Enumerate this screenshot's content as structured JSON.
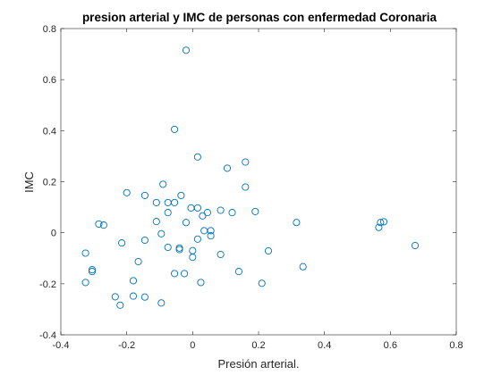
{
  "chart_data": {
    "type": "scatter",
    "title": "presion arterial y IMC de personas con enfermedad Coronaria",
    "xlabel": "Presión arterial.",
    "ylabel": "IMC",
    "xlim": [
      -0.4,
      0.8
    ],
    "ylim": [
      -0.4,
      0.8
    ],
    "xticks": [
      "-0.4",
      "-0.2",
      "0",
      "0.2",
      "0.4",
      "0.6",
      "0.8"
    ],
    "yticks": [
      "-0.4",
      "-0.2",
      "0",
      "0.2",
      "0.4",
      "0.6",
      "0.8"
    ],
    "grid": false,
    "marker": "circle-open",
    "color": "#0072BD",
    "points": [
      [
        -0.02,
        0.715
      ],
      [
        -0.055,
        0.405
      ],
      [
        0.015,
        0.297
      ],
      [
        0.16,
        0.277
      ],
      [
        0.105,
        0.253
      ],
      [
        0.16,
        0.179
      ],
      [
        -0.2,
        0.157
      ],
      [
        -0.09,
        0.19
      ],
      [
        -0.035,
        0.146
      ],
      [
        -0.145,
        0.146
      ],
      [
        -0.11,
        0.118
      ],
      [
        -0.075,
        0.118
      ],
      [
        -0.055,
        0.118
      ],
      [
        -0.005,
        0.097
      ],
      [
        0.015,
        0.097
      ],
      [
        0.085,
        0.088
      ],
      [
        0.045,
        0.079
      ],
      [
        0.12,
        0.079
      ],
      [
        0.19,
        0.083
      ],
      [
        -0.075,
        0.079
      ],
      [
        0.03,
        0.066
      ],
      [
        -0.11,
        0.044
      ],
      [
        -0.02,
        0.04
      ],
      [
        0.315,
        0.04
      ],
      [
        0.57,
        0.04
      ],
      [
        0.58,
        0.043
      ],
      [
        0.565,
        0.021
      ],
      [
        -0.285,
        0.034
      ],
      [
        -0.27,
        0.03
      ],
      [
        0.035,
        0.008
      ],
      [
        0.055,
        0.008
      ],
      [
        -0.095,
        -0.004
      ],
      [
        0.055,
        -0.012
      ],
      [
        -0.215,
        -0.04
      ],
      [
        -0.145,
        -0.029
      ],
      [
        0.015,
        -0.025
      ],
      [
        0.675,
        -0.05
      ],
      [
        -0.075,
        -0.057
      ],
      [
        -0.04,
        -0.06
      ],
      [
        -0.04,
        -0.066
      ],
      [
        0.0,
        -0.07
      ],
      [
        0.23,
        -0.071
      ],
      [
        -0.325,
        -0.08
      ],
      [
        0.085,
        -0.085
      ],
      [
        0.0,
        -0.096
      ],
      [
        -0.165,
        -0.113
      ],
      [
        0.335,
        -0.133
      ],
      [
        -0.305,
        -0.145
      ],
      [
        -0.305,
        -0.152
      ],
      [
        0.14,
        -0.152
      ],
      [
        -0.055,
        -0.16
      ],
      [
        -0.025,
        -0.16
      ],
      [
        -0.325,
        -0.195
      ],
      [
        -0.18,
        -0.188
      ],
      [
        0.025,
        -0.195
      ],
      [
        0.21,
        -0.198
      ],
      [
        -0.235,
        -0.251
      ],
      [
        -0.18,
        -0.248
      ],
      [
        -0.145,
        -0.252
      ],
      [
        -0.22,
        -0.284
      ],
      [
        -0.095,
        -0.275
      ]
    ]
  }
}
